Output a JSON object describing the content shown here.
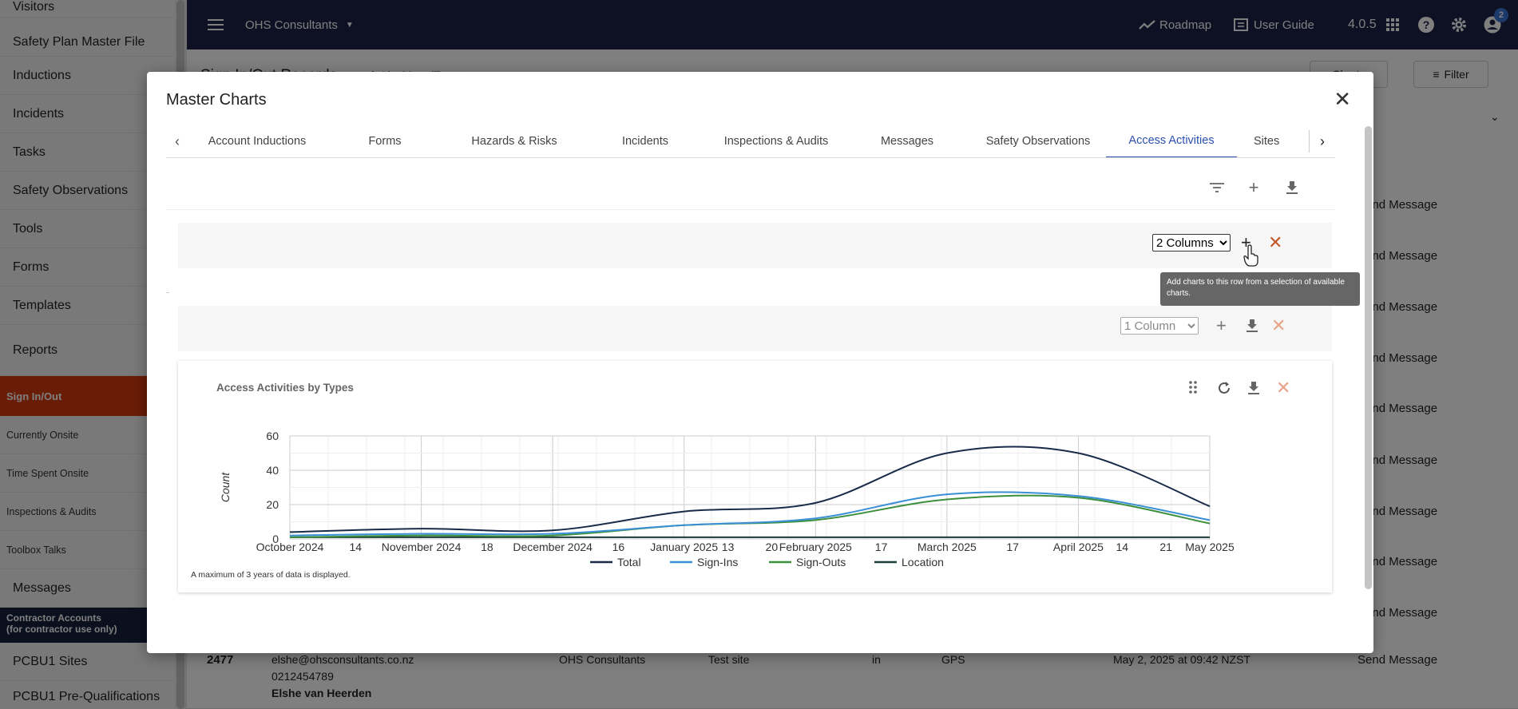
{
  "sidebar": {
    "items": [
      "Visitors",
      "Safety Plan Master File",
      "Inductions",
      "Incidents",
      "Tasks",
      "Safety Observations",
      "Tools",
      "Forms",
      "Templates",
      "Reports"
    ],
    "section": "Sign In/Out",
    "sub_items": [
      "Currently Onsite",
      "Time Spent Onsite",
      "Inspections & Audits",
      "Toolbox Talks"
    ],
    "messages": "Messages",
    "contractor_line1": "Contractor Accounts",
    "contractor_line2": "(for contractor use only)",
    "bottom_items": [
      "PCBU1 Sites",
      "PCBU1 Pre-Qualifications"
    ]
  },
  "topbar": {
    "org": "OHS Consultants",
    "roadmap": "Roadmap",
    "user_guide": "User Guide",
    "version": "4.0.5",
    "badge": "2"
  },
  "page": {
    "title": "Sign In/Out Records",
    "list_menu": "List Menu/Export",
    "charts_btn": "Charts",
    "filter_btn": "Filter",
    "send_message": "Send Message",
    "row": {
      "id": "2477",
      "email": "elshe@ohsconsultants.co.nz",
      "phone": "0212454789",
      "name": "Elshe van Heerden",
      "company": "OHS Consultants",
      "site": "Test site",
      "direction": "in",
      "method": "GPS",
      "time": "May 2, 2025 at 09:42 NZST"
    }
  },
  "modal": {
    "title": "Master Charts",
    "tabs": [
      "Account Inductions",
      "Forms",
      "Hazards & Risks",
      "Incidents",
      "Inspections & Audits",
      "Messages",
      "Safety Observations",
      "Access Activities",
      "Sites"
    ],
    "active_tab": "Access Activities",
    "row1_select": "2 Columns",
    "row2_select": "1 Column",
    "tooltip": "Add charts to this row from a selection of available charts.",
    "chart_title": "Access Activities by Types",
    "chart_note": "A maximum of 3 years of data is displayed."
  },
  "chart_data": {
    "type": "line",
    "title": "Access Activities by Types",
    "ylabel": "Count",
    "xlabel": "",
    "ylim": [
      0,
      60
    ],
    "yticks": [
      0,
      20,
      40,
      60
    ],
    "x": [
      "2024-10-01",
      "2024-11-01",
      "2024-12-01",
      "2025-01-01",
      "2025-02-01",
      "2025-03-01",
      "2025-04-01",
      "2025-05-01"
    ],
    "xtick_labels": [
      "October 2024",
      "14",
      "November 2024",
      "18",
      "December 2024",
      "16",
      "January 2025",
      "13",
      "20",
      "February 2025",
      "17",
      "March 2025",
      "17",
      "April 2025",
      "14",
      "21",
      "May 2025"
    ],
    "series": [
      {
        "name": "Total",
        "color": "#1a2b4a",
        "values": [
          4,
          6,
          5,
          16,
          21,
          50,
          50,
          19
        ]
      },
      {
        "name": "Sign-Ins",
        "color": "#3a8fd6",
        "values": [
          2,
          3,
          3,
          8,
          12,
          26,
          25,
          11
        ]
      },
      {
        "name": "Sign-Outs",
        "color": "#3c8f3c",
        "values": [
          1,
          2,
          2,
          8,
          11,
          23,
          24,
          9
        ]
      },
      {
        "name": "Location",
        "color": "#1d3d3a",
        "values": [
          1,
          1,
          1,
          1,
          1,
          1,
          1,
          1
        ]
      }
    ],
    "grid": true,
    "legend": "bottom"
  }
}
